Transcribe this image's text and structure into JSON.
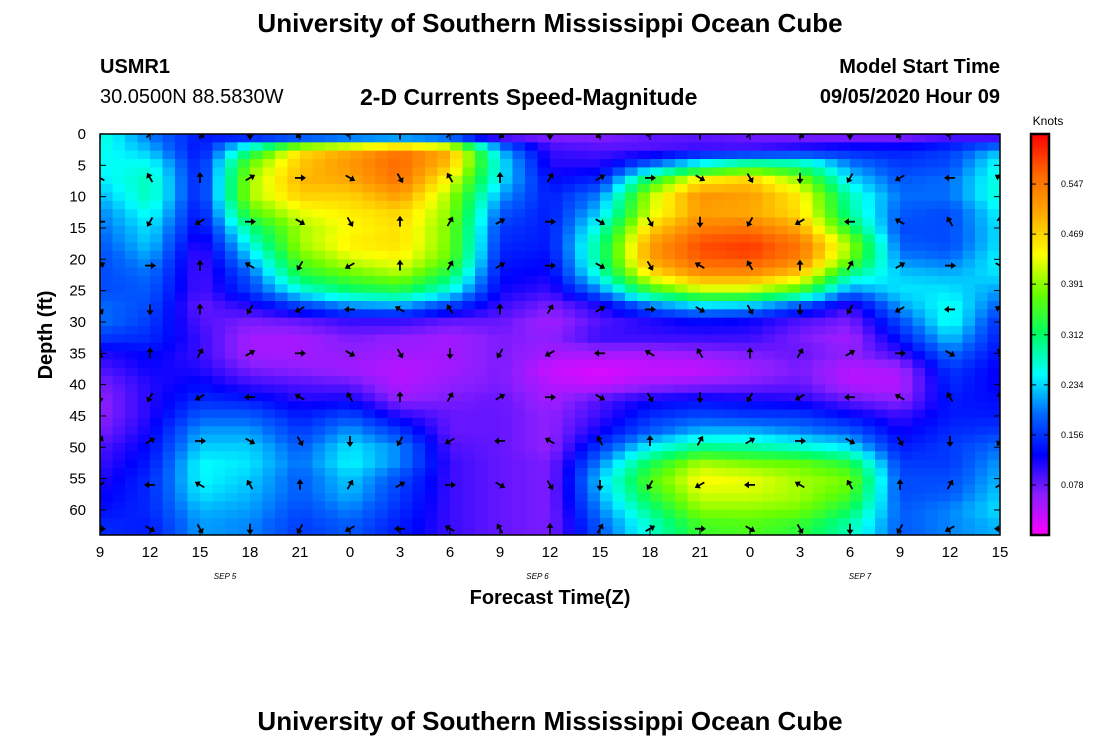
{
  "header": {
    "title": "University of Southern Mississippi Ocean Cube",
    "station_id": "USMR1",
    "coords": "30.0500N 88.5830W",
    "chart_title": "2-D Currents Speed-Magnitude",
    "model_start_label": "Model Start Time",
    "model_start_value": "09/05/2020 Hour 09"
  },
  "footer": {
    "title": "University of Southern Mississippi Ocean Cube"
  },
  "chart_data": {
    "type": "heatmap",
    "title": "2-D Currents Speed-Magnitude",
    "xlabel": "Forecast Time(Z)",
    "ylabel": "Depth (ft)",
    "x_ticks": [
      "9",
      "12",
      "15",
      "18",
      "21",
      "0",
      "3",
      "6",
      "9",
      "12",
      "15",
      "18",
      "21",
      "0",
      "3",
      "6",
      "9",
      "12",
      "15"
    ],
    "date_labels": [
      {
        "label": "SEP 5",
        "at_tick": 2.5
      },
      {
        "label": "SEP 6",
        "at_tick": 8.75
      },
      {
        "label": "SEP 7",
        "at_tick": 15.2
      }
    ],
    "y_ticks": [
      0,
      5,
      10,
      15,
      20,
      25,
      30,
      35,
      40,
      45,
      50,
      55,
      60
    ],
    "ylim": [
      0,
      64
    ],
    "colorbar": {
      "label": "Knots",
      "ticks": [
        "0.547",
        "0.469",
        "0.391",
        "0.312",
        "0.234",
        "0.156",
        "0.078"
      ],
      "tick_values": [
        0.547,
        0.469,
        0.391,
        0.312,
        0.234,
        0.156,
        0.078
      ],
      "range": [
        0,
        0.625
      ],
      "colors": [
        "#ff00ff",
        "#8c1eff",
        "#0000ff",
        "#0066ff",
        "#00ffff",
        "#00ff66",
        "#66ff00",
        "#ffff00",
        "#ffaa00",
        "#ff6600",
        "#ff0000"
      ]
    },
    "grid_depths": [
      0,
      2.5,
      5,
      7.5,
      10,
      12.5,
      15,
      17.5,
      20,
      22.5,
      25,
      27.5,
      30,
      32.5,
      35,
      37.5,
      40,
      42.5,
      45,
      47.5,
      50,
      52.5,
      55,
      57.5,
      60,
      62.5,
      64
    ],
    "speed_grid": [
      [
        0.27,
        0.19,
        0.14,
        0.1,
        0.08,
        0.09,
        0.09,
        0.08,
        0.05,
        0.06,
        0.06,
        0.08,
        0.08,
        0.07,
        0.06,
        0.05,
        0.05,
        0.07,
        0.05
      ],
      [
        0.26,
        0.22,
        0.13,
        0.3,
        0.46,
        0.5,
        0.55,
        0.5,
        0.22,
        0.1,
        0.09,
        0.09,
        0.1,
        0.1,
        0.12,
        0.14,
        0.14,
        0.16,
        0.22
      ],
      [
        0.25,
        0.26,
        0.14,
        0.38,
        0.48,
        0.52,
        0.56,
        0.48,
        0.25,
        0.11,
        0.11,
        0.19,
        0.27,
        0.32,
        0.3,
        0.2,
        0.16,
        0.17,
        0.26
      ],
      [
        0.24,
        0.28,
        0.14,
        0.4,
        0.49,
        0.5,
        0.55,
        0.43,
        0.24,
        0.13,
        0.15,
        0.34,
        0.46,
        0.48,
        0.4,
        0.24,
        0.18,
        0.19,
        0.27
      ],
      [
        0.22,
        0.28,
        0.14,
        0.4,
        0.47,
        0.47,
        0.51,
        0.4,
        0.21,
        0.14,
        0.2,
        0.41,
        0.52,
        0.51,
        0.45,
        0.28,
        0.19,
        0.19,
        0.27
      ],
      [
        0.2,
        0.26,
        0.13,
        0.36,
        0.43,
        0.45,
        0.47,
        0.39,
        0.18,
        0.14,
        0.23,
        0.42,
        0.51,
        0.5,
        0.46,
        0.29,
        0.18,
        0.17,
        0.25
      ],
      [
        0.19,
        0.24,
        0.12,
        0.3,
        0.4,
        0.44,
        0.46,
        0.38,
        0.16,
        0.14,
        0.27,
        0.47,
        0.54,
        0.55,
        0.5,
        0.33,
        0.17,
        0.17,
        0.24
      ],
      [
        0.18,
        0.23,
        0.1,
        0.26,
        0.4,
        0.45,
        0.46,
        0.38,
        0.15,
        0.14,
        0.3,
        0.51,
        0.58,
        0.59,
        0.55,
        0.4,
        0.18,
        0.17,
        0.24
      ],
      [
        0.17,
        0.21,
        0.09,
        0.22,
        0.37,
        0.42,
        0.44,
        0.37,
        0.14,
        0.13,
        0.3,
        0.51,
        0.57,
        0.58,
        0.54,
        0.38,
        0.2,
        0.19,
        0.25
      ],
      [
        0.17,
        0.19,
        0.09,
        0.18,
        0.33,
        0.37,
        0.4,
        0.32,
        0.13,
        0.12,
        0.27,
        0.45,
        0.52,
        0.52,
        0.47,
        0.29,
        0.23,
        0.22,
        0.24
      ],
      [
        0.17,
        0.18,
        0.09,
        0.16,
        0.26,
        0.31,
        0.33,
        0.26,
        0.12,
        0.1,
        0.2,
        0.34,
        0.41,
        0.41,
        0.35,
        0.2,
        0.24,
        0.24,
        0.21
      ],
      [
        0.19,
        0.17,
        0.08,
        0.11,
        0.16,
        0.2,
        0.21,
        0.16,
        0.1,
        0.07,
        0.11,
        0.19,
        0.23,
        0.22,
        0.17,
        0.1,
        0.21,
        0.26,
        0.18
      ],
      [
        0.19,
        0.16,
        0.09,
        0.07,
        0.08,
        0.1,
        0.1,
        0.08,
        0.08,
        0.05,
        0.09,
        0.11,
        0.13,
        0.12,
        0.09,
        0.07,
        0.17,
        0.26,
        0.15
      ],
      [
        0.16,
        0.15,
        0.1,
        0.05,
        0.05,
        0.07,
        0.06,
        0.05,
        0.07,
        0.06,
        0.1,
        0.1,
        0.1,
        0.1,
        0.07,
        0.05,
        0.14,
        0.23,
        0.14
      ],
      [
        0.11,
        0.13,
        0.1,
        0.05,
        0.05,
        0.06,
        0.05,
        0.05,
        0.07,
        0.05,
        0.05,
        0.05,
        0.06,
        0.07,
        0.08,
        0.06,
        0.1,
        0.19,
        0.13
      ],
      [
        0.09,
        0.12,
        0.11,
        0.07,
        0.06,
        0.05,
        0.04,
        0.05,
        0.07,
        0.03,
        0.02,
        0.03,
        0.03,
        0.05,
        0.07,
        0.04,
        0.05,
        0.16,
        0.12
      ],
      [
        0.07,
        0.11,
        0.13,
        0.1,
        0.09,
        0.08,
        0.04,
        0.06,
        0.07,
        0.04,
        0.03,
        0.05,
        0.06,
        0.07,
        0.08,
        0.04,
        0.04,
        0.15,
        0.12
      ],
      [
        0.06,
        0.11,
        0.15,
        0.14,
        0.11,
        0.12,
        0.06,
        0.07,
        0.08,
        0.05,
        0.09,
        0.12,
        0.13,
        0.12,
        0.11,
        0.08,
        0.06,
        0.14,
        0.13
      ],
      [
        0.06,
        0.11,
        0.18,
        0.18,
        0.14,
        0.17,
        0.11,
        0.08,
        0.08,
        0.06,
        0.1,
        0.15,
        0.17,
        0.16,
        0.16,
        0.13,
        0.1,
        0.14,
        0.14
      ],
      [
        0.07,
        0.12,
        0.21,
        0.21,
        0.16,
        0.21,
        0.16,
        0.08,
        0.08,
        0.06,
        0.12,
        0.18,
        0.22,
        0.22,
        0.2,
        0.18,
        0.12,
        0.15,
        0.16
      ],
      [
        0.09,
        0.13,
        0.23,
        0.23,
        0.18,
        0.24,
        0.2,
        0.09,
        0.08,
        0.06,
        0.16,
        0.25,
        0.3,
        0.29,
        0.27,
        0.24,
        0.14,
        0.16,
        0.19
      ],
      [
        0.1,
        0.14,
        0.25,
        0.24,
        0.19,
        0.25,
        0.2,
        0.1,
        0.08,
        0.07,
        0.2,
        0.32,
        0.4,
        0.38,
        0.37,
        0.33,
        0.16,
        0.16,
        0.21
      ],
      [
        0.11,
        0.15,
        0.25,
        0.23,
        0.18,
        0.23,
        0.17,
        0.1,
        0.08,
        0.07,
        0.23,
        0.36,
        0.44,
        0.43,
        0.4,
        0.38,
        0.17,
        0.17,
        0.22
      ],
      [
        0.12,
        0.15,
        0.24,
        0.22,
        0.18,
        0.22,
        0.16,
        0.1,
        0.08,
        0.07,
        0.22,
        0.34,
        0.42,
        0.42,
        0.4,
        0.36,
        0.17,
        0.18,
        0.23
      ],
      [
        0.13,
        0.15,
        0.22,
        0.21,
        0.17,
        0.2,
        0.15,
        0.1,
        0.08,
        0.07,
        0.2,
        0.3,
        0.39,
        0.39,
        0.38,
        0.32,
        0.18,
        0.2,
        0.24
      ],
      [
        0.15,
        0.14,
        0.21,
        0.2,
        0.16,
        0.18,
        0.14,
        0.1,
        0.08,
        0.07,
        0.18,
        0.27,
        0.35,
        0.36,
        0.34,
        0.28,
        0.18,
        0.2,
        0.22
      ],
      [
        0.15,
        0.14,
        0.21,
        0.2,
        0.16,
        0.18,
        0.14,
        0.1,
        0.08,
        0.07,
        0.18,
        0.27,
        0.35,
        0.36,
        0.34,
        0.28,
        0.18,
        0.2,
        0.22
      ]
    ],
    "vector_depths": [
      0,
      7,
      14,
      21,
      28,
      35,
      42,
      49,
      56,
      63
    ],
    "vector_dirs_deg": [
      [
        0,
        45,
        135,
        180,
        225,
        270,
        0,
        45,
        135,
        180,
        225,
        270,
        0,
        45,
        135,
        180,
        225,
        270,
        315
      ],
      [
        300,
        330,
        0,
        60,
        90,
        120,
        150,
        330,
        0,
        30,
        60,
        90,
        120,
        150,
        180,
        210,
        240,
        270,
        300
      ],
      [
        270,
        210,
        240,
        90,
        120,
        150,
        0,
        30,
        60,
        90,
        120,
        150,
        180,
        210,
        240,
        270,
        300,
        330,
        0
      ],
      [
        60,
        90,
        0,
        300,
        210,
        240,
        0,
        30,
        60,
        90,
        120,
        150,
        300,
        330,
        0,
        30,
        60,
        90,
        120
      ],
      [
        150,
        180,
        0,
        210,
        240,
        270,
        300,
        330,
        0,
        30,
        60,
        90,
        120,
        150,
        180,
        210,
        240,
        270,
        300
      ],
      [
        330,
        0,
        30,
        60,
        90,
        120,
        150,
        180,
        210,
        240,
        270,
        300,
        330,
        0,
        30,
        60,
        90,
        120,
        150
      ],
      [
        180,
        210,
        240,
        270,
        300,
        330,
        0,
        30,
        60,
        90,
        120,
        150,
        180,
        210,
        240,
        270,
        300,
        330,
        0
      ],
      [
        30,
        60,
        90,
        120,
        150,
        180,
        210,
        240,
        270,
        300,
        330,
        0,
        30,
        60,
        90,
        120,
        150,
        180,
        210
      ],
      [
        240,
        270,
        300,
        330,
        0,
        30,
        60,
        90,
        120,
        150,
        180,
        210,
        240,
        270,
        300,
        330,
        0,
        30,
        60
      ],
      [
        90,
        120,
        150,
        180,
        210,
        240,
        270,
        300,
        330,
        0,
        30,
        60,
        90,
        120,
        150,
        180,
        210,
        240,
        270
      ]
    ]
  }
}
